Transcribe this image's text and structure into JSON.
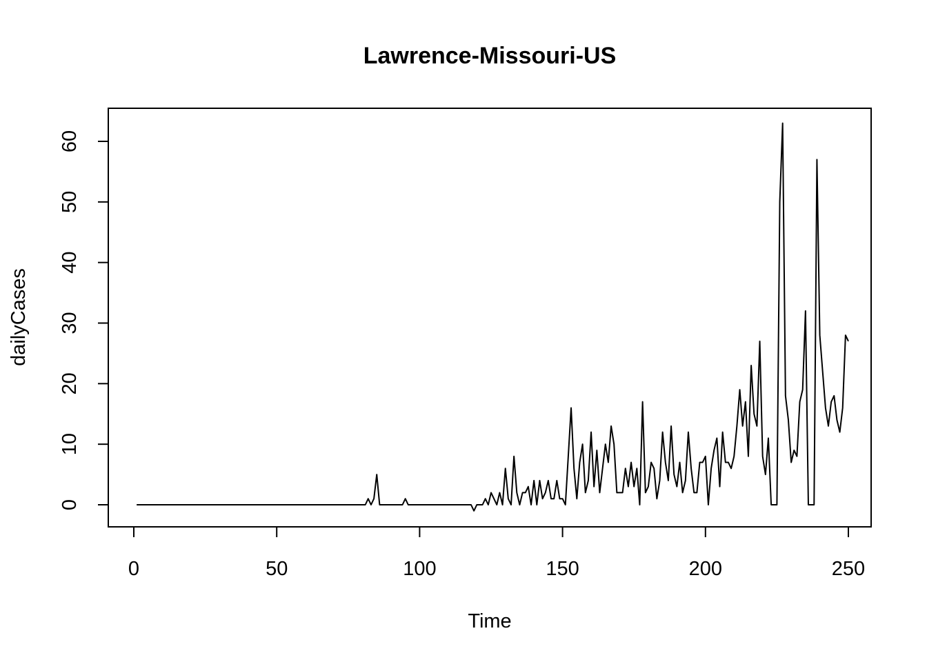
{
  "chart_data": {
    "type": "line",
    "title": "Lawrence-Missouri-US",
    "xlabel": "Time",
    "ylabel": "dailyCases",
    "xlim": [
      0,
      250
    ],
    "ylim": [
      0,
      63
    ],
    "xticks": [
      0,
      50,
      100,
      150,
      200,
      250
    ],
    "yticks": [
      0,
      10,
      20,
      30,
      40,
      50,
      60
    ],
    "grid": false,
    "legend": "none",
    "series": [
      {
        "x_start": 1,
        "values": [
          0,
          0,
          0,
          0,
          0,
          0,
          0,
          0,
          0,
          0,
          0,
          0,
          0,
          0,
          0,
          0,
          0,
          0,
          0,
          0,
          0,
          0,
          0,
          0,
          0,
          0,
          0,
          0,
          0,
          0,
          0,
          0,
          0,
          0,
          0,
          0,
          0,
          0,
          0,
          0,
          0,
          0,
          0,
          0,
          0,
          0,
          0,
          0,
          0,
          0,
          0,
          0,
          0,
          0,
          0,
          0,
          0,
          0,
          0,
          0,
          0,
          0,
          0,
          0,
          0,
          0,
          0,
          0,
          0,
          0,
          0,
          0,
          0,
          0,
          0,
          0,
          0,
          0,
          0,
          0,
          0,
          1,
          0,
          1,
          5,
          0,
          0,
          0,
          0,
          0,
          0,
          0,
          0,
          0,
          1,
          0,
          0,
          0,
          0,
          0,
          0,
          0,
          0,
          0,
          0,
          0,
          0,
          0,
          0,
          0,
          0,
          0,
          0,
          0,
          0,
          0,
          0,
          0,
          -1,
          0,
          0,
          0,
          1,
          0,
          2,
          1,
          0,
          2,
          0,
          6,
          1,
          0,
          8,
          2,
          0,
          2,
          2,
          3,
          0,
          4,
          0,
          4,
          1,
          2,
          4,
          1,
          1,
          4,
          1,
          1,
          0,
          8,
          16,
          6,
          1,
          7,
          10,
          2,
          4,
          12,
          3,
          9,
          2,
          6,
          10,
          7,
          13,
          10,
          2,
          2,
          2,
          6,
          3,
          7,
          3,
          6,
          0,
          17,
          2,
          3,
          7,
          6,
          1,
          4,
          12,
          7,
          4,
          13,
          5,
          3,
          7,
          2,
          4,
          12,
          6,
          2,
          2,
          7,
          7,
          8,
          0,
          6,
          9,
          11,
          3,
          12,
          7,
          7,
          6,
          8,
          13,
          19,
          13,
          17,
          8,
          23,
          15,
          13,
          27,
          8,
          5,
          11,
          0,
          0,
          0,
          50,
          63,
          18,
          14,
          7,
          9,
          8,
          17,
          19,
          32,
          0,
          0,
          0,
          57,
          28,
          22,
          16,
          13,
          17,
          18,
          14,
          12,
          16,
          28,
          27
        ]
      }
    ]
  }
}
